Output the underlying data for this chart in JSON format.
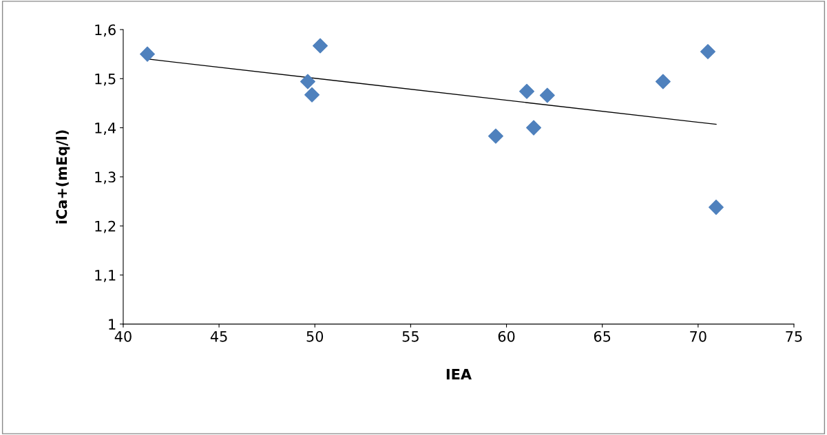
{
  "chart_data": {
    "type": "scatter",
    "xlabel": "IEA",
    "ylabel": "iCa+(mEq/l)",
    "xlim": [
      40,
      75
    ],
    "xticks": [
      40,
      45,
      50,
      55,
      60,
      65,
      70,
      75
    ],
    "ylim": [
      1,
      1.6
    ],
    "yticks": [
      {
        "value": 1,
        "label": "1"
      },
      {
        "value": 1.1,
        "label": "1,1"
      },
      {
        "value": 1.2,
        "label": "1,2"
      },
      {
        "value": 1.3,
        "label": "1,3"
      },
      {
        "value": 1.4,
        "label": "1,4"
      },
      {
        "value": 1.5,
        "label": "1,5"
      },
      {
        "value": 1.6,
        "label": "1,6"
      }
    ],
    "grid": false,
    "legend": false,
    "marker": "diamond",
    "series": [
      {
        "color": "#4f81bd",
        "x": [
          41.26,
          50.28,
          49.63,
          49.85,
          59.44,
          61.06,
          61.42,
          62.13,
          68.17,
          70.51,
          70.94
        ],
        "values": [
          1.55,
          1.567,
          1.494,
          1.467,
          1.383,
          1.474,
          1.4,
          1.466,
          1.494,
          1.555,
          1.238
        ]
      },
      {
        "type": "line",
        "color": "#000000",
        "x": [
          41.26,
          70.94
        ],
        "values": [
          1.54,
          1.407
        ],
        "marker": "none",
        "line_style": "solid"
      }
    ]
  }
}
